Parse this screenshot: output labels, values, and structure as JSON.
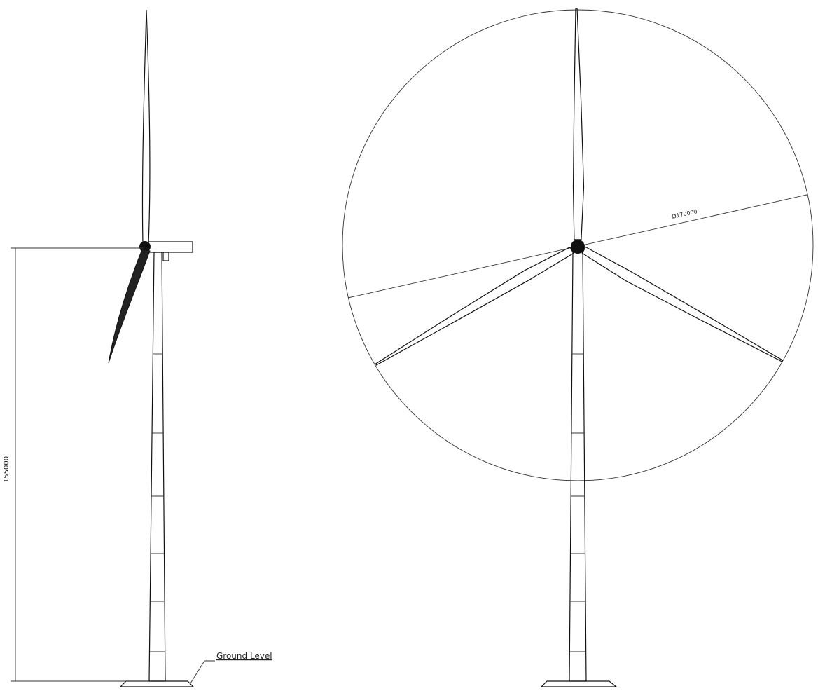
{
  "dimensions": {
    "hub_height": "155000",
    "rotor_diameter": "Ø170000"
  },
  "labels": {
    "ground": "Ground Level"
  }
}
